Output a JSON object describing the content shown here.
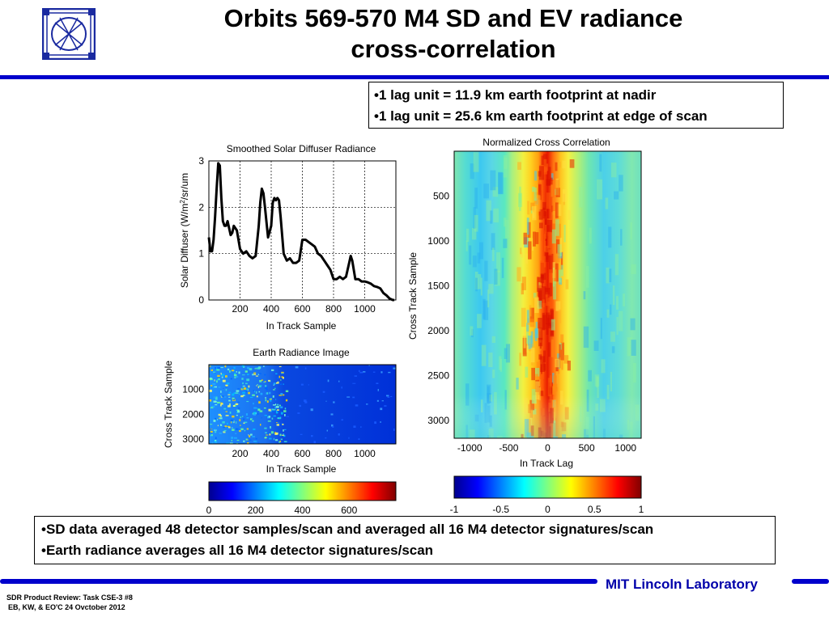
{
  "slide": {
    "title_line1": "Orbits 569-570 M4 SD and EV radiance",
    "title_line2": "cross-correlation",
    "bullets_top": [
      "1 lag unit  = 11.9 km earth footprint at nadir",
      "1 lag unit = 25.6 km earth footprint at edge of scan"
    ],
    "bullets_bottom": [
      "SD data averaged 48 detector samples/scan and averaged all 16 M4 detector signatures/scan",
      "Earth radiance averages all 16 M4 detector signatures/scan"
    ],
    "footer_line1": "SDR Product Review: Task CSE-3 #8",
    "footer_line2": "EB, KW, & EO'C  24 Ovctober 2012",
    "lab_name": "MIT Lincoln Laboratory",
    "brand_color": "#0000cc"
  },
  "chart_data": [
    {
      "type": "line",
      "title": "Smoothed Solar Diffuser Radiance",
      "xlabel": "In Track Sample",
      "ylabel_prefix": "Solar Diffuser (W/m",
      "ylabel_sup": "2",
      "ylabel_suffix": "/sr/um",
      "xlim": [
        0,
        1200
      ],
      "ylim": [
        0,
        3
      ],
      "xticks": [
        "200",
        "400",
        "600",
        "800",
        "1000"
      ],
      "yticks": [
        "0",
        "1",
        "2",
        "3"
      ],
      "grid": true,
      "series": [
        {
          "x": [
            0,
            10,
            20,
            30,
            40,
            50,
            60,
            70,
            80,
            90,
            100,
            110,
            120,
            130,
            140,
            150,
            160,
            180,
            200,
            220,
            240,
            260,
            280,
            300,
            320,
            330,
            340,
            350,
            360,
            380,
            400,
            410,
            420,
            430,
            440,
            450,
            460,
            480,
            500,
            520,
            540,
            560,
            580,
            600,
            620,
            640,
            660,
            680,
            700,
            720,
            740,
            760,
            780,
            800,
            820,
            840,
            860,
            880,
            900,
            910,
            920,
            940,
            960,
            980,
            1000,
            1020,
            1040,
            1060,
            1080,
            1100,
            1120,
            1140,
            1160,
            1180,
            1190
          ],
          "y": [
            1.35,
            1.05,
            1.05,
            1.3,
            1.8,
            2.4,
            2.95,
            2.9,
            2.2,
            1.7,
            1.6,
            1.6,
            1.7,
            1.55,
            1.4,
            1.45,
            1.6,
            1.5,
            1.1,
            1.0,
            1.05,
            0.95,
            0.9,
            0.95,
            1.6,
            2.1,
            2.4,
            2.3,
            2.0,
            1.35,
            1.6,
            2.1,
            2.2,
            2.15,
            2.2,
            2.15,
            1.8,
            1.0,
            0.85,
            0.9,
            0.8,
            0.8,
            0.85,
            1.3,
            1.3,
            1.25,
            1.2,
            1.15,
            1.0,
            0.95,
            0.85,
            0.75,
            0.65,
            0.45,
            0.45,
            0.5,
            0.45,
            0.5,
            0.8,
            0.95,
            0.85,
            0.45,
            0.45,
            0.4,
            0.4,
            0.38,
            0.35,
            0.3,
            0.28,
            0.25,
            0.15,
            0.1,
            0.03,
            0.0,
            0.0
          ]
        }
      ]
    },
    {
      "type": "heatmap",
      "title": "Earth Radiance Image",
      "xlabel": "In Track Sample",
      "ylabel": "Cross Track Sample",
      "xlim": [
        0,
        1200
      ],
      "ylim": [
        0,
        3200
      ],
      "xticks": [
        "200",
        "400",
        "600",
        "800",
        "1000"
      ],
      "yticks": [
        "1000",
        "2000",
        "3000"
      ],
      "colorbar": {
        "range": [
          0,
          800
        ],
        "ticks": [
          "0",
          "200",
          "400",
          "600"
        ]
      }
    },
    {
      "type": "heatmap",
      "title": "Normalized Cross Correlation",
      "xlabel": "In Track Lag",
      "ylabel": "Cross Track Sample",
      "xlim": [
        -1200,
        1200
      ],
      "ylim": [
        0,
        3200
      ],
      "xticks": [
        "-1000",
        "-500",
        "0",
        "500",
        "1000"
      ],
      "yticks": [
        "500",
        "1000",
        "1500",
        "2000",
        "2500",
        "3000"
      ],
      "colorbar": {
        "range": [
          -1,
          1
        ],
        "ticks": [
          "-1",
          "-0.5",
          "0",
          "0.5",
          "1"
        ]
      }
    }
  ]
}
